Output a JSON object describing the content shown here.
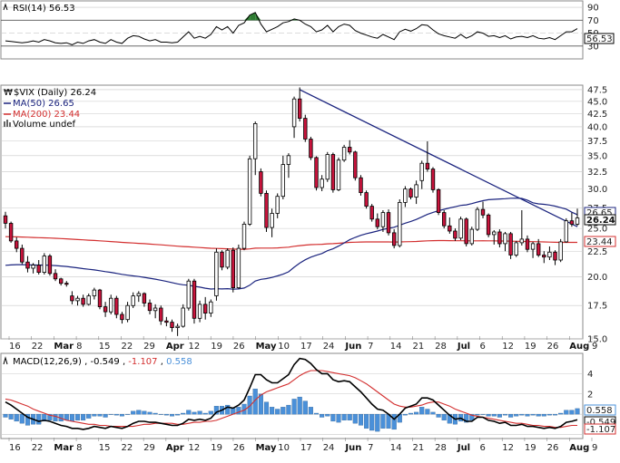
{
  "colors": {
    "up": "#ffffff",
    "down": "#c8143c",
    "wick": "#000000",
    "ma50": "#1a237e",
    "ma200": "#d32f2f",
    "rsi": "#000000",
    "rsi_fill": "#2e7d32",
    "macd": "#000000",
    "signal": "#d32f2f",
    "histogram": "#4a90d9",
    "trendline": "#1a237e",
    "grid": "#c8c8c8"
  },
  "rsi_panel": {
    "label": "RSI(14) 56.53",
    "value_box": "56.53",
    "ticks": [
      "90",
      "70",
      "50",
      "30"
    ]
  },
  "price_panel": {
    "legend": {
      "title": "$VIX (Daily) 26.24",
      "ma50": "MA(50) 26.65",
      "ma200": "MA(200) 23.44",
      "volume": "Volume undef"
    },
    "value_boxes": {
      "last": "26.24",
      "ma50": "26.65",
      "ma200": "23.44"
    },
    "y_ticks": [
      "47.5",
      "45.0",
      "42.5",
      "40.0",
      "37.5",
      "35.0",
      "32.5",
      "30.0",
      "27.5",
      "25.0",
      "22.5",
      "20.0",
      "17.5",
      "15.0"
    ]
  },
  "macd_panel": {
    "label_prefix": "MACD(12,26,9)",
    "macd_value": "-0.549",
    "signal_value": "-1.107",
    "hist_value": "0.558",
    "ticks": [
      "4",
      "2",
      "0",
      "-2"
    ],
    "value_boxes": [
      "0.558",
      "-0.549",
      "-1.107"
    ]
  },
  "x_axis": {
    "labels": [
      "16",
      "22",
      "Mar",
      "8",
      "15",
      "22",
      "29",
      "Apr",
      "12",
      "19",
      "26",
      "May",
      "10",
      "17",
      "24",
      "Jun",
      "7",
      "14",
      "21",
      "28",
      "Jul",
      "6",
      "12",
      "19",
      "26",
      "Aug",
      "9"
    ]
  },
  "chart_data": {
    "type": "candlestick",
    "title": "$VIX (Daily) 26.24",
    "series": [
      {
        "name": "$VIX (Daily)",
        "ohlc": [
          [
            26.5,
            27.0,
            25.0,
            25.6
          ],
          [
            25.6,
            25.8,
            23.4,
            23.6
          ],
          [
            23.6,
            24.0,
            22.4,
            22.8
          ],
          [
            22.8,
            23.2,
            21.2,
            21.4
          ],
          [
            21.4,
            22.0,
            20.4,
            20.8
          ],
          [
            20.8,
            21.3,
            20.3,
            21.1
          ],
          [
            21.1,
            21.6,
            20.2,
            20.4
          ],
          [
            20.4,
            22.3,
            20.2,
            22.0
          ],
          [
            22.0,
            22.2,
            20.1,
            20.3
          ],
          [
            20.3,
            20.7,
            19.6,
            19.8
          ],
          [
            19.8,
            19.9,
            19.2,
            19.4
          ],
          [
            19.4,
            19.6,
            19.1,
            19.3
          ],
          [
            18.3,
            18.7,
            17.6,
            17.9
          ],
          [
            17.9,
            18.3,
            17.5,
            18.1
          ],
          [
            18.1,
            18.4,
            17.4,
            17.6
          ],
          [
            17.6,
            18.5,
            17.5,
            18.3
          ],
          [
            18.3,
            19.0,
            18.0,
            18.8
          ],
          [
            18.8,
            18.9,
            17.2,
            17.4
          ],
          [
            17.4,
            17.8,
            16.6,
            17.0
          ],
          [
            17.0,
            18.4,
            16.8,
            18.1
          ],
          [
            18.1,
            18.3,
            16.5,
            16.8
          ],
          [
            16.8,
            17.0,
            16.1,
            16.4
          ],
          [
            16.4,
            17.8,
            16.2,
            17.5
          ],
          [
            17.5,
            18.6,
            17.3,
            18.3
          ],
          [
            18.3,
            18.7,
            17.8,
            18.5
          ],
          [
            18.5,
            18.6,
            17.4,
            17.7
          ],
          [
            17.7,
            18.0,
            16.8,
            17.1
          ],
          [
            17.1,
            17.6,
            16.5,
            17.3
          ],
          [
            17.3,
            17.5,
            16.0,
            16.3
          ],
          [
            16.3,
            16.6,
            15.9,
            16.2
          ],
          [
            16.2,
            16.4,
            15.5,
            15.8
          ],
          [
            15.8,
            16.1,
            15.2,
            15.9
          ],
          [
            15.9,
            17.6,
            15.8,
            17.3
          ],
          [
            17.3,
            19.8,
            17.1,
            19.6
          ],
          [
            19.6,
            19.8,
            16.1,
            16.5
          ],
          [
            16.5,
            17.9,
            16.2,
            17.6
          ],
          [
            17.6,
            18.2,
            16.4,
            16.9
          ],
          [
            16.9,
            18.0,
            16.6,
            17.8
          ],
          [
            18.3,
            22.8,
            17.9,
            22.4
          ],
          [
            22.4,
            22.6,
            20.6,
            20.9
          ],
          [
            20.9,
            22.8,
            20.7,
            22.6
          ],
          [
            22.6,
            22.9,
            18.6,
            19.0
          ],
          [
            19.0,
            23.2,
            18.9,
            22.8
          ],
          [
            22.8,
            25.8,
            22.6,
            25.5
          ],
          [
            25.5,
            35.0,
            25.3,
            34.5
          ],
          [
            34.5,
            41.0,
            32.0,
            40.6
          ],
          [
            32.5,
            33.0,
            29.0,
            29.4
          ],
          [
            29.4,
            29.8,
            24.6,
            25.1
          ],
          [
            25.1,
            27.4,
            24.0,
            26.8
          ],
          [
            26.8,
            29.4,
            26.2,
            29.0
          ],
          [
            29.0,
            35.0,
            28.6,
            33.6
          ],
          [
            33.6,
            35.4,
            31.6,
            35.0
          ],
          [
            40.0,
            46.0,
            38.0,
            45.5
          ],
          [
            45.5,
            48.0,
            41.0,
            41.6
          ],
          [
            41.6,
            42.3,
            37.3,
            37.8
          ],
          [
            37.8,
            38.2,
            34.3,
            34.7
          ],
          [
            34.7,
            34.9,
            29.8,
            30.2
          ],
          [
            30.2,
            32.0,
            29.7,
            31.4
          ],
          [
            31.4,
            35.6,
            31.0,
            35.2
          ],
          [
            35.2,
            35.5,
            29.5,
            29.9
          ],
          [
            29.9,
            34.7,
            29.7,
            34.3
          ],
          [
            34.3,
            36.8,
            34.0,
            36.4
          ],
          [
            36.4,
            37.6,
            35.2,
            35.6
          ],
          [
            35.6,
            35.8,
            31.2,
            31.6
          ],
          [
            31.6,
            32.0,
            29.1,
            29.5
          ],
          [
            29.5,
            29.8,
            27.4,
            27.7
          ],
          [
            27.7,
            28.0,
            25.8,
            26.1
          ],
          [
            26.1,
            26.8,
            24.9,
            25.2
          ],
          [
            25.2,
            27.2,
            24.6,
            26.9
          ],
          [
            26.9,
            27.3,
            24.2,
            24.5
          ],
          [
            24.5,
            24.9,
            22.8,
            23.1
          ],
          [
            23.1,
            28.6,
            22.9,
            28.2
          ],
          [
            28.2,
            30.4,
            27.6,
            30.0
          ],
          [
            30.0,
            30.2,
            28.6,
            28.9
          ],
          [
            28.9,
            31.2,
            28.0,
            30.6
          ],
          [
            31.2,
            34.2,
            30.0,
            33.8
          ],
          [
            33.8,
            37.4,
            32.5,
            32.9
          ],
          [
            32.9,
            33.2,
            29.5,
            29.9
          ],
          [
            29.9,
            30.1,
            26.6,
            26.9
          ],
          [
            26.9,
            27.2,
            25.0,
            25.3
          ],
          [
            25.3,
            26.3,
            24.4,
            24.7
          ],
          [
            24.7,
            25.0,
            23.6,
            23.9
          ],
          [
            23.9,
            26.4,
            23.7,
            26.1
          ],
          [
            26.1,
            26.3,
            23.0,
            23.3
          ],
          [
            23.3,
            25.2,
            23.1,
            24.9
          ],
          [
            24.9,
            27.6,
            24.7,
            27.3
          ],
          [
            27.3,
            28.3,
            26.2,
            26.6
          ],
          [
            26.6,
            26.8,
            24.0,
            24.3
          ],
          [
            24.3,
            24.8,
            23.2,
            24.6
          ],
          [
            24.6,
            24.9,
            22.9,
            23.3
          ],
          [
            23.3,
            24.6,
            22.5,
            24.4
          ],
          [
            24.4,
            24.6,
            21.7,
            22.1
          ],
          [
            22.1,
            23.6,
            21.9,
            23.4
          ],
          [
            23.4,
            27.2,
            23.1,
            23.8
          ],
          [
            23.8,
            24.2,
            22.4,
            22.7
          ],
          [
            22.7,
            23.5,
            21.8,
            23.3
          ],
          [
            23.3,
            23.8,
            21.9,
            22.1
          ],
          [
            22.1,
            22.5,
            21.3,
            21.9
          ],
          [
            21.9,
            23.0,
            21.6,
            22.4
          ],
          [
            22.4,
            22.6,
            21.1,
            21.6
          ],
          [
            21.6,
            23.8,
            21.4,
            23.5
          ],
          [
            23.5,
            26.2,
            23.4,
            25.9
          ],
          [
            25.9,
            26.9,
            25.2,
            25.5
          ],
          [
            25.5,
            27.4,
            25.3,
            26.24
          ]
        ]
      },
      {
        "name": "MA(50)",
        "last": 26.65
      },
      {
        "name": "MA(200)",
        "last": 23.44
      }
    ],
    "ylim": [
      15.0,
      48.5
    ],
    "rsi": [
      38,
      37,
      36,
      35,
      36,
      38,
      36,
      40,
      38,
      35,
      34,
      35,
      32,
      36,
      34,
      38,
      40,
      36,
      34,
      40,
      36,
      34,
      42,
      46,
      45,
      41,
      38,
      40,
      36,
      36,
      35,
      36,
      44,
      52,
      42,
      45,
      42,
      48,
      60,
      55,
      60,
      50,
      62,
      66,
      78,
      82,
      64,
      52,
      56,
      60,
      66,
      68,
      72,
      70,
      64,
      60,
      52,
      55,
      62,
      52,
      60,
      64,
      62,
      54,
      50,
      47,
      44,
      42,
      48,
      44,
      40,
      52,
      56,
      53,
      57,
      63,
      62,
      55,
      49,
      46,
      44,
      42,
      48,
      42,
      46,
      52,
      50,
      45,
      46,
      43,
      46,
      41,
      44,
      45,
      43,
      46,
      42,
      41,
      43,
      40,
      46,
      52,
      52,
      57
    ],
    "rsi_ticks": [
      90,
      70,
      50,
      30
    ],
    "macd": [
      1.2,
      0.9,
      0.5,
      0.1,
      -0.3,
      -0.5,
      -0.7,
      -0.6,
      -0.7,
      -0.9,
      -1.1,
      -1.2,
      -1.4,
      -1.4,
      -1.5,
      -1.4,
      -1.2,
      -1.3,
      -1.4,
      -1.2,
      -1.3,
      -1.4,
      -1.2,
      -0.9,
      -0.7,
      -0.7,
      -0.8,
      -0.8,
      -0.9,
      -1.0,
      -1.1,
      -1.1,
      -0.9,
      -0.5,
      -0.6,
      -0.5,
      -0.6,
      -0.4,
      0.2,
      0.4,
      0.7,
      0.6,
      0.9,
      1.4,
      2.6,
      3.9,
      3.9,
      3.4,
      3.1,
      3.1,
      3.5,
      3.9,
      4.9,
      5.5,
      5.4,
      5.0,
      4.4,
      4.0,
      4.0,
      3.4,
      3.2,
      3.3,
      3.2,
      2.7,
      2.2,
      1.6,
      1.0,
      0.5,
      0.4,
      0.0,
      -0.5,
      0.0,
      0.6,
      0.8,
      1.0,
      1.6,
      1.6,
      1.4,
      0.9,
      0.4,
      -0.1,
      -0.5,
      -0.4,
      -0.7,
      -0.7,
      -0.3,
      -0.3,
      -0.6,
      -0.7,
      -0.9,
      -0.8,
      -1.1,
      -1.1,
      -1.0,
      -1.2,
      -1.2,
      -1.3,
      -1.4,
      -1.3,
      -1.4,
      -1.2,
      -0.8,
      -0.7,
      -0.549
    ],
    "signal": [
      1.5,
      1.4,
      1.2,
      1.0,
      0.8,
      0.5,
      0.3,
      0.1,
      -0.1,
      -0.2,
      -0.4,
      -0.6,
      -0.7,
      -0.8,
      -0.9,
      -1.0,
      -1.0,
      -1.1,
      -1.1,
      -1.2,
      -1.2,
      -1.2,
      -1.2,
      -1.2,
      -1.1,
      -1.0,
      -1.0,
      -0.9,
      -0.9,
      -0.9,
      -0.9,
      -1.0,
      -1.0,
      -0.9,
      -0.8,
      -0.8,
      -0.7,
      -0.7,
      -0.6,
      -0.4,
      -0.2,
      0.0,
      0.2,
      0.4,
      0.8,
      1.4,
      1.9,
      2.2,
      2.4,
      2.6,
      2.8,
      3.0,
      3.4,
      3.8,
      4.1,
      4.3,
      4.3,
      4.3,
      4.2,
      4.1,
      4.0,
      3.9,
      3.8,
      3.6,
      3.3,
      3.0,
      2.6,
      2.2,
      1.8,
      1.4,
      1.0,
      0.8,
      0.7,
      0.7,
      0.8,
      0.9,
      1.1,
      1.2,
      1.2,
      1.0,
      0.8,
      0.5,
      0.3,
      0.1,
      -0.1,
      -0.2,
      -0.3,
      -0.4,
      -0.5,
      -0.6,
      -0.7,
      -0.8,
      -0.9,
      -0.9,
      -1.0,
      -1.1,
      -1.1,
      -1.2,
      -1.2,
      -1.3,
      -1.3,
      -1.2,
      -1.1,
      -1.107
    ],
    "macd_ticks": [
      4,
      2,
      0,
      -2
    ],
    "trendline": {
      "start": 47.5,
      "end": 25.2
    }
  }
}
